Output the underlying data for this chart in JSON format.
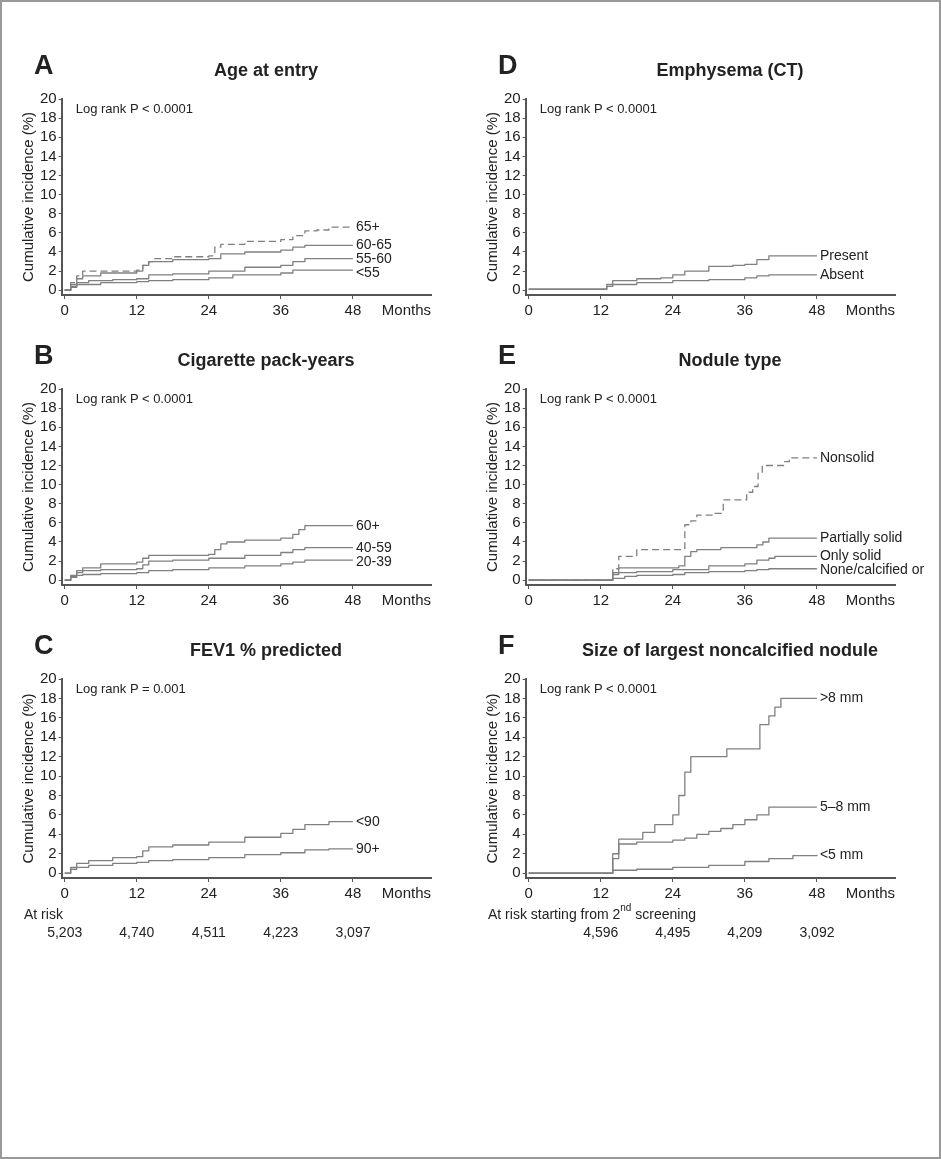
{
  "chart_data": [
    {
      "type": "step",
      "title": "Age at entry",
      "ylabel": "Cumulative incidence (%)",
      "xlabel": "Months",
      "xlim": [
        -0.5,
        61
      ],
      "xticks": [
        0,
        12,
        24,
        36,
        48
      ],
      "ylim": [
        -0.5,
        20
      ],
      "yticks": [
        0,
        2,
        4,
        6,
        8,
        10,
        12,
        14,
        16,
        18,
        20
      ],
      "grid": false,
      "legend": false,
      "annotations": [
        "A",
        "Log rank P < 0.0001"
      ],
      "series": [
        {
          "name": "65+",
          "color": "#808080",
          "line_style": "dashed",
          "x": [
            0,
            1,
            2,
            3,
            6,
            12,
            13,
            14,
            15,
            18,
            24,
            25,
            26,
            30,
            36,
            38,
            40,
            42,
            44,
            48
          ],
          "values": [
            0,
            0.8,
            1.5,
            2,
            2,
            2.1,
            2.6,
            3.0,
            3.3,
            3.5,
            3.6,
            4.5,
            4.8,
            5.1,
            5.3,
            5.7,
            6.2,
            6.3,
            6.6,
            6.6
          ]
        },
        {
          "name": "60-65",
          "color": "#808080",
          "x": [
            0,
            1,
            2,
            3,
            6,
            12,
            13,
            14,
            18,
            24,
            26,
            30,
            36,
            38,
            40,
            44,
            48
          ],
          "values": [
            0,
            0.6,
            1.2,
            1.5,
            1.8,
            2.0,
            2.6,
            3.0,
            3.2,
            3.3,
            3.8,
            4.0,
            4.2,
            4.5,
            4.7,
            4.7,
            4.7
          ]
        },
        {
          "name": "55-60",
          "color": "#808080",
          "x": [
            0,
            1,
            2,
            4,
            8,
            12,
            14,
            18,
            24,
            30,
            36,
            38,
            40,
            44,
            48
          ],
          "values": [
            0,
            0.4,
            0.8,
            1.0,
            1.1,
            1.2,
            1.6,
            1.7,
            2.0,
            2.4,
            2.6,
            3.0,
            3.3,
            3.3,
            3.3
          ]
        },
        {
          "name": "<55",
          "color": "#808080",
          "x": [
            0,
            1,
            2,
            6,
            12,
            14,
            18,
            24,
            28,
            36,
            38,
            44,
            48
          ],
          "values": [
            0,
            0.3,
            0.6,
            0.8,
            0.9,
            1.0,
            1.1,
            1.3,
            1.6,
            1.8,
            2.1,
            2.1,
            2.1
          ]
        }
      ]
    },
    {
      "type": "step",
      "title": "Emphysema (CT)",
      "ylabel": "Cumulative incidence (%)",
      "xlabel": "Months",
      "xlim": [
        -0.5,
        61
      ],
      "xticks": [
        0,
        12,
        24,
        36,
        48
      ],
      "ylim": [
        -0.5,
        20
      ],
      "yticks": [
        0,
        2,
        4,
        6,
        8,
        10,
        12,
        14,
        16,
        18,
        20
      ],
      "grid": false,
      "legend": false,
      "annotations": [
        "D",
        "Log rank P < 0.0001"
      ],
      "series": [
        {
          "name": "Present",
          "color": "#808080",
          "x": [
            0,
            12,
            13,
            14,
            18,
            22,
            24,
            26,
            30,
            34,
            36,
            38,
            40,
            48
          ],
          "values": [
            0.1,
            0.1,
            0.6,
            1.0,
            1.2,
            1.3,
            1.6,
            2.0,
            2.5,
            2.6,
            2.7,
            3.2,
            3.6,
            3.6
          ]
        },
        {
          "name": "Absent",
          "color": "#808080",
          "x": [
            0,
            12,
            13,
            14,
            18,
            24,
            30,
            36,
            38,
            40,
            48
          ],
          "values": [
            0.1,
            0.1,
            0.4,
            0.6,
            0.8,
            1.0,
            1.1,
            1.3,
            1.5,
            1.6,
            1.6
          ]
        }
      ]
    },
    {
      "type": "step",
      "title": "Cigarette pack-years",
      "ylabel": "Cumulative incidence (%)",
      "xlabel": "Months",
      "xlim": [
        -0.5,
        61
      ],
      "xticks": [
        0,
        12,
        24,
        36,
        48
      ],
      "ylim": [
        -0.5,
        20
      ],
      "yticks": [
        0,
        2,
        4,
        6,
        8,
        10,
        12,
        14,
        16,
        18,
        20
      ],
      "grid": false,
      "legend": false,
      "annotations": [
        "B",
        "Log rank P < 0.0001"
      ],
      "series": [
        {
          "name": "60+",
          "color": "#808080",
          "x": [
            0,
            1,
            2,
            3,
            6,
            12,
            13,
            14,
            18,
            24,
            25,
            26,
            27,
            30,
            36,
            38,
            39,
            40,
            48
          ],
          "values": [
            0,
            0.5,
            1.0,
            1.3,
            1.7,
            1.9,
            2.3,
            2.6,
            2.6,
            2.7,
            3.2,
            3.8,
            4.0,
            4.2,
            4.4,
            4.8,
            5.3,
            5.7,
            5.7
          ]
        },
        {
          "name": "40-59",
          "color": "#808080",
          "x": [
            0,
            1,
            2,
            3,
            6,
            12,
            13,
            14,
            18,
            24,
            30,
            36,
            38,
            40,
            48
          ],
          "values": [
            0,
            0.4,
            0.8,
            1.0,
            1.1,
            1.2,
            1.6,
            2.0,
            2.1,
            2.3,
            2.6,
            2.9,
            3.2,
            3.4,
            3.4
          ]
        },
        {
          "name": "20-39",
          "color": "#808080",
          "x": [
            0,
            1,
            2,
            3,
            6,
            12,
            14,
            18,
            24,
            30,
            36,
            38,
            40,
            48
          ],
          "values": [
            0,
            0.3,
            0.5,
            0.6,
            0.7,
            0.8,
            1.0,
            1.1,
            1.3,
            1.5,
            1.7,
            1.9,
            2.1,
            2.1
          ]
        }
      ]
    },
    {
      "type": "step",
      "title": "Nodule type",
      "ylabel": "Cumulative incidence (%)",
      "xlabel": "Months",
      "xlim": [
        -0.5,
        61
      ],
      "xticks": [
        0,
        12,
        24,
        36,
        48
      ],
      "ylim": [
        -0.5,
        20
      ],
      "yticks": [
        0,
        2,
        4,
        6,
        8,
        10,
        12,
        14,
        16,
        18,
        20
      ],
      "grid": false,
      "legend": false,
      "annotations": [
        "E",
        "Log rank P < 0.0001"
      ],
      "series": [
        {
          "name": "Nonsolid",
          "color": "#808080",
          "line_style": "dashed",
          "x": [
            0,
            13,
            14,
            15,
            18,
            26,
            27,
            28,
            30,
            31,
            32.4,
            36.3,
            37.3,
            38.2,
            38.9,
            42.5,
            43.4,
            48
          ],
          "values": [
            0,
            0,
            1.2,
            2.5,
            3.2,
            5.8,
            6.2,
            6.8,
            6.8,
            7.0,
            8.4,
            9.2,
            9.8,
            11.2,
            12.0,
            12.4,
            12.8,
            12.8
          ]
        },
        {
          "name": "Partially solid",
          "color": "#808080",
          "x": [
            0,
            13,
            14,
            15,
            25,
            26,
            27,
            28,
            32,
            38,
            39,
            40,
            48
          ],
          "values": [
            0,
            0,
            0.8,
            1.3,
            1.5,
            2.5,
            3.0,
            3.2,
            3.4,
            3.7,
            4.0,
            4.4,
            4.4
          ]
        },
        {
          "name": "Only solid",
          "color": "#808080",
          "x": [
            0,
            13,
            14,
            15,
            18,
            24,
            30,
            36,
            38,
            40,
            41,
            48
          ],
          "values": [
            0,
            0,
            0.6,
            0.8,
            0.9,
            1.1,
            1.5,
            1.7,
            2.1,
            2.3,
            2.5,
            2.5
          ]
        },
        {
          "name": "None/calcified or",
          "color": "#808080",
          "x": [
            0,
            13,
            14,
            16,
            18,
            24,
            26,
            30,
            36,
            38,
            40,
            48
          ],
          "values": [
            0,
            0,
            0.2,
            0.4,
            0.5,
            0.6,
            0.8,
            0.9,
            1.0,
            1.1,
            1.2,
            1.2
          ]
        }
      ]
    },
    {
      "type": "step",
      "title": "FEV1 % predicted",
      "ylabel": "Cumulative incidence (%)",
      "xlabel": "Months",
      "xlim": [
        -0.5,
        61
      ],
      "xticks": [
        0,
        12,
        24,
        36,
        48
      ],
      "ylim": [
        -0.5,
        20
      ],
      "yticks": [
        0,
        2,
        4,
        6,
        8,
        10,
        12,
        14,
        16,
        18,
        20
      ],
      "grid": false,
      "legend": false,
      "annotations": [
        "C",
        "Log rank P = 0.001",
        "At risk",
        "5,203",
        "4,740",
        "4,511",
        "4,223",
        "3,097"
      ],
      "series": [
        {
          "name": "<90",
          "color": "#808080",
          "x": [
            0,
            1,
            2,
            4,
            8,
            12,
            13,
            14,
            18,
            24,
            30,
            36,
            38,
            40,
            44,
            48
          ],
          "values": [
            0,
            0.6,
            1.0,
            1.3,
            1.6,
            1.7,
            2.3,
            2.7,
            2.9,
            3.2,
            3.7,
            4.1,
            4.5,
            5.0,
            5.3,
            5.3
          ]
        },
        {
          "name": "90+",
          "color": "#808080",
          "x": [
            0,
            1,
            2,
            4,
            8,
            12,
            14,
            18,
            24,
            30,
            36,
            40,
            44,
            48
          ],
          "values": [
            0,
            0.4,
            0.6,
            0.8,
            1.0,
            1.1,
            1.3,
            1.4,
            1.6,
            1.9,
            2.1,
            2.4,
            2.5,
            2.5
          ]
        }
      ]
    },
    {
      "type": "step",
      "title": "Size of largest noncalcified nodule",
      "ylabel": "Cumulative incidence (%)",
      "xlabel": "Months",
      "xlim": [
        -0.5,
        61
      ],
      "xticks": [
        0,
        12,
        24,
        36,
        48
      ],
      "ylim": [
        -0.5,
        20
      ],
      "yticks": [
        0,
        2,
        4,
        6,
        8,
        10,
        12,
        14,
        16,
        18,
        20
      ],
      "grid": false,
      "legend": false,
      "annotations": [
        "F",
        "Log rank P < 0.0001",
        "At risk starting from 2$^{nd}$ screening",
        "4,596",
        "4,495",
        "4,209",
        "3,092"
      ],
      "series": [
        {
          "name": ">8 mm",
          "color": "#808080",
          "x": [
            0,
            13,
            14,
            15,
            17,
            19,
            21,
            23,
            24,
            25,
            26,
            27,
            32,
            33,
            38,
            38.5,
            40,
            41,
            42,
            48
          ],
          "values": [
            0,
            0,
            2,
            3.5,
            3.5,
            4.2,
            5.0,
            5.0,
            6.0,
            8.0,
            10.4,
            12.0,
            12.0,
            12.8,
            12.8,
            15.3,
            16.2,
            17.1,
            18.0,
            18.0
          ]
        },
        {
          "name": "5–8 mm",
          "color": "#808080",
          "x": [
            0,
            13,
            14,
            15,
            18,
            24,
            26,
            28,
            30,
            32,
            34,
            36,
            38,
            40,
            48
          ],
          "values": [
            0,
            0,
            1.5,
            3.0,
            3.2,
            3.4,
            3.6,
            4.0,
            4.3,
            4.6,
            5.0,
            5.5,
            6.0,
            6.8,
            6.8
          ]
        },
        {
          "name": "<5 mm",
          "color": "#808080",
          "x": [
            0,
            13,
            14,
            18,
            24,
            30,
            36,
            40,
            44,
            48
          ],
          "values": [
            0,
            0,
            0.3,
            0.4,
            0.6,
            0.8,
            1.2,
            1.5,
            1.8,
            1.9
          ]
        }
      ]
    }
  ]
}
